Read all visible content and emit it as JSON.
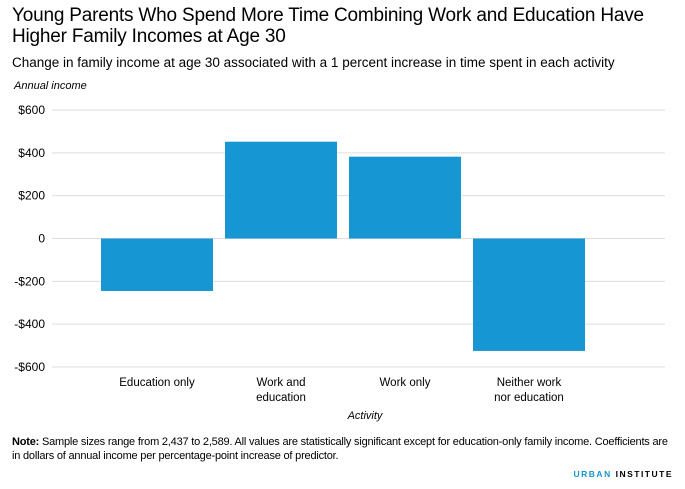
{
  "chart_data": {
    "type": "bar",
    "title": "Young Parents Who Spend More Time Combining Work and Education Have Higher Family Incomes at Age 30",
    "subtitle": "Change in family income at age 30 associated with a 1 percent increase in time spent in each activity",
    "ylabel": "Annual income",
    "xlabel": "Activity",
    "categories": [
      [
        "Education only"
      ],
      [
        "Work and",
        "education"
      ],
      [
        "Work only"
      ],
      [
        "Neither work",
        "nor education"
      ]
    ],
    "values": [
      -245,
      452,
      382,
      -525
    ],
    "ylim": [
      -600,
      600
    ],
    "yticks": [
      600,
      400,
      200,
      0,
      -200,
      -400,
      -600
    ],
    "ytick_labels": [
      "$600",
      "$400",
      "$200",
      "0",
      "-$200",
      "-$400",
      "-$600"
    ],
    "grid": true,
    "bar_color": "#1696d2"
  },
  "note": {
    "label": "Note:",
    "text": " Sample sizes range from 2,437 to 2,589. All values are statistically significant except for education-only family income. Coefficients are in dollars of annual income per percentage-point increase of predictor."
  },
  "logo": {
    "part1": "URBAN",
    "part2": " INSTITUTE"
  }
}
